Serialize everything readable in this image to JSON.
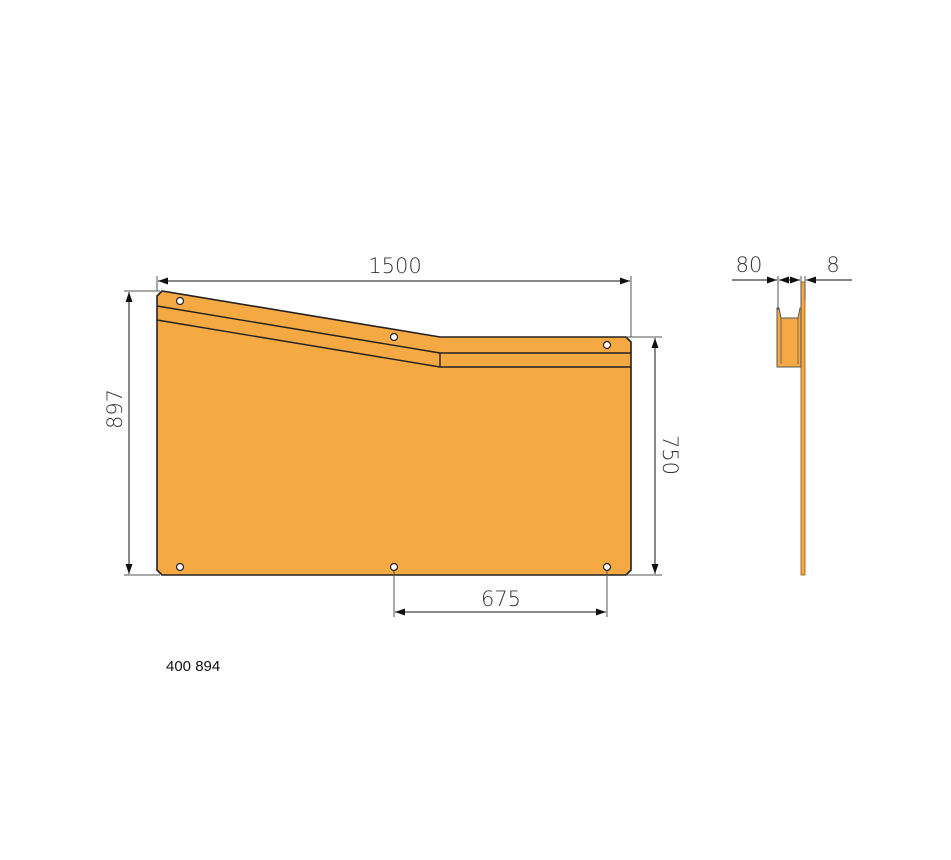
{
  "drawing": {
    "part_number": "400 894",
    "fill_color": "#F5A942",
    "front_view": {
      "dimensions": {
        "width": "1500",
        "height_left": "897",
        "height_right": "750",
        "hole_spacing": "675"
      }
    },
    "side_view": {
      "dimensions": {
        "depth": "80",
        "thickness": "8"
      }
    }
  }
}
